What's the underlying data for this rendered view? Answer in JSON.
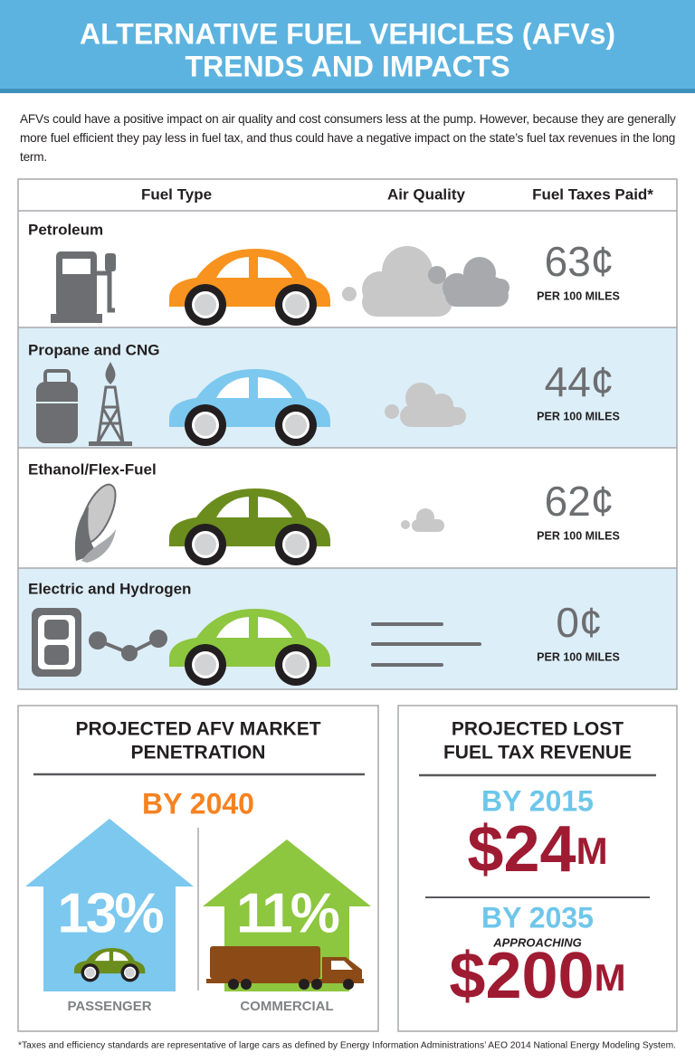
{
  "header": {
    "title_line1": "ALTERNATIVE FUEL VEHICLES (AFVs)",
    "title_line2": "TRENDS AND IMPACTS"
  },
  "intro": "AFVs could have a positive impact on air quality and cost consumers less at the pump. However, because they are generally more fuel efficient they pay less in fuel tax, and thus could have a negative impact on the state’s fuel tax revenues in the long term.",
  "table": {
    "columns": [
      "Fuel Type",
      "Air Quality",
      "Fuel Taxes Paid*"
    ],
    "rows": [
      {
        "fuel": "Petroleum",
        "tax": "63¢",
        "tax_unit": "PER 100 MILES"
      },
      {
        "fuel": "Propane and CNG",
        "tax": "44¢",
        "tax_unit": "PER 100 MILES"
      },
      {
        "fuel": "Ethanol/Flex-Fuel",
        "tax": "62¢",
        "tax_unit": "PER 100 MILES"
      },
      {
        "fuel": "Electric and Hydrogen",
        "tax": "0¢",
        "tax_unit": "PER 100 MILES"
      }
    ]
  },
  "market": {
    "title_line1": "PROJECTED AFV MARKET",
    "title_line2": "PENETRATION",
    "year": "BY 2040",
    "passenger": {
      "share": "13%",
      "label": "PASSENGER"
    },
    "commercial": {
      "share": "11%",
      "label": "COMMERCIAL"
    }
  },
  "lost_revenue": {
    "title_line1": "PROJECTED LOST",
    "title_line2": "FUEL TAX REVENUE",
    "first": {
      "year": "BY 2015",
      "amount": "$24",
      "unit": "M"
    },
    "second": {
      "year": "BY 2035",
      "note": "APPROACHING",
      "amount": "$200",
      "unit": "M"
    }
  },
  "footnote": "*Taxes and efficiency standards are representative of large cars as defined by Energy Information Administrations’ AEO 2014 National Energy Modeling System."
}
